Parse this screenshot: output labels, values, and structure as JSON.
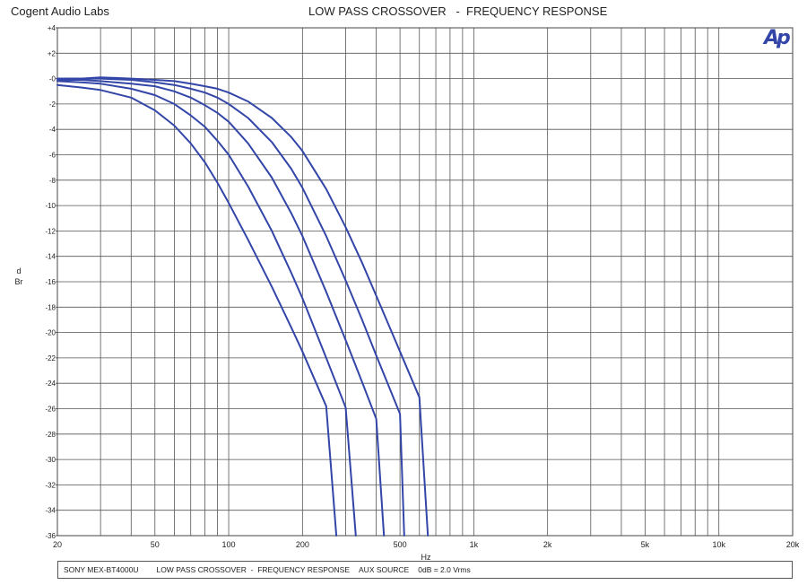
{
  "header": {
    "company": "Cogent Audio Labs",
    "title": "LOW PASS CROSSOVER   -  FREQUENCY RESPONSE"
  },
  "logo": {
    "text": "Ap",
    "color": "#3346a8"
  },
  "footer": {
    "device": "SONY MEX-BT4000U",
    "desc": "LOW PASS CROSSOVER  -  FREQUENCY RESPONSE",
    "source": "AUX SOURCE",
    "ref": "0dB = 2.0 Vrms"
  },
  "chart_data": {
    "type": "line",
    "xlabel": "Hz",
    "ylabel": "dBr",
    "xscale": "log",
    "xlim": [
      20,
      20000
    ],
    "ylim": [
      -36,
      4
    ],
    "grid": true,
    "line_color": "#3346a8",
    "xticks": [
      20,
      50,
      100,
      200,
      500,
      1000,
      2000,
      5000,
      10000,
      20000
    ],
    "xtick_labels": [
      "20",
      "50",
      "100",
      "200",
      "500",
      "1k",
      "2k",
      "5k",
      "10k",
      "20k"
    ],
    "yticks": [
      4,
      2,
      0,
      -2,
      -4,
      -6,
      -8,
      -10,
      -12,
      -14,
      -16,
      -18,
      -20,
      -22,
      -24,
      -26,
      -28,
      -30,
      -32,
      -34,
      -36
    ],
    "ytick_labels": [
      "+4",
      "+2",
      "-0",
      "-2",
      "-4",
      "-6",
      "-8",
      "-10",
      "-12",
      "-14",
      "-16",
      "-18",
      "-20",
      "-22",
      "-24",
      "-26",
      "-28",
      "-30",
      "-32",
      "-34",
      "-36"
    ],
    "series": [
      {
        "x": [
          20,
          25,
          30,
          40,
          50,
          60,
          70,
          80,
          90,
          100,
          120,
          150,
          180,
          200,
          250,
          275
        ],
        "y": [
          -0.5,
          -0.7,
          -0.9,
          -1.5,
          -2.5,
          -3.7,
          -5.1,
          -6.6,
          -8.2,
          -9.8,
          -12.7,
          -16.4,
          -19.6,
          -21.5,
          -25.8,
          -36
        ]
      },
      {
        "x": [
          20,
          25,
          30,
          40,
          50,
          60,
          70,
          80,
          90,
          100,
          120,
          150,
          180,
          200,
          250,
          300,
          330
        ],
        "y": [
          -0.2,
          -0.3,
          -0.4,
          -0.8,
          -1.3,
          -2.0,
          -2.9,
          -3.8,
          -4.9,
          -6.0,
          -8.5,
          -12.0,
          -15.3,
          -17.3,
          -22.0,
          -25.9,
          -36
        ]
      },
      {
        "x": [
          20,
          25,
          30,
          40,
          50,
          60,
          70,
          80,
          90,
          100,
          120,
          150,
          180,
          200,
          250,
          300,
          350,
          400,
          430
        ],
        "y": [
          -0.1,
          -0.1,
          -0.2,
          -0.4,
          -0.6,
          -1.0,
          -1.5,
          -2.1,
          -2.7,
          -3.4,
          -5.1,
          -7.8,
          -10.6,
          -12.4,
          -16.8,
          -20.6,
          -23.9,
          -26.8,
          -36
        ]
      },
      {
        "x": [
          20,
          25,
          30,
          40,
          50,
          60,
          70,
          80,
          90,
          100,
          120,
          150,
          180,
          200,
          250,
          300,
          350,
          400,
          500,
          520
        ],
        "y": [
          0.0,
          0.0,
          0.0,
          -0.1,
          -0.3,
          -0.5,
          -0.8,
          -1.1,
          -1.5,
          -2.0,
          -3.1,
          -5.0,
          -7.1,
          -8.6,
          -12.4,
          -15.9,
          -19.0,
          -21.8,
          -26.4,
          -36
        ]
      },
      {
        "x": [
          20,
          25,
          30,
          40,
          50,
          60,
          70,
          80,
          90,
          100,
          120,
          150,
          180,
          200,
          250,
          300,
          350,
          400,
          500,
          600,
          650
        ],
        "y": [
          0.0,
          0.0,
          0.1,
          0.0,
          -0.1,
          -0.2,
          -0.4,
          -0.6,
          -0.8,
          -1.1,
          -1.8,
          -3.1,
          -4.6,
          -5.7,
          -8.7,
          -11.7,
          -14.5,
          -17.1,
          -21.5,
          -25.1,
          -36
        ]
      }
    ]
  }
}
